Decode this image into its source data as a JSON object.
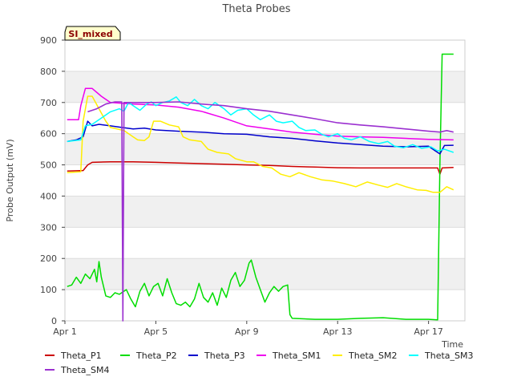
{
  "chart_data": {
    "type": "line",
    "title": "Theta Probes",
    "xlabel": "Time",
    "ylabel": "Probe Output (mV)",
    "badge": "SI_mixed",
    "ylim": [
      0,
      900
    ],
    "xlim": [
      1,
      18.6
    ],
    "yticks": [
      0,
      100,
      200,
      300,
      400,
      500,
      600,
      700,
      800,
      900
    ],
    "xticks": [
      {
        "value": 1,
        "label": "Apr 1"
      },
      {
        "value": 5,
        "label": "Apr 5"
      },
      {
        "value": 9,
        "label": "Apr 9"
      },
      {
        "value": 13,
        "label": "Apr 13"
      },
      {
        "value": 17,
        "label": "Apr 17"
      }
    ],
    "grid": true,
    "series": [
      {
        "name": "Theta_P1",
        "color": "#cc0000",
        "points": [
          [
            1.1,
            480
          ],
          [
            1.8,
            482
          ],
          [
            2.0,
            500
          ],
          [
            2.2,
            508
          ],
          [
            3,
            510
          ],
          [
            4,
            510
          ],
          [
            5,
            508
          ],
          [
            6,
            506
          ],
          [
            7,
            504
          ],
          [
            8,
            502
          ],
          [
            9,
            500
          ],
          [
            10,
            498
          ],
          [
            11,
            495
          ],
          [
            12,
            493
          ],
          [
            13,
            491
          ],
          [
            14,
            490
          ],
          [
            15,
            490
          ],
          [
            16,
            490
          ],
          [
            17,
            490
          ],
          [
            17.4,
            490
          ],
          [
            17.5,
            470
          ],
          [
            17.6,
            490
          ],
          [
            18.1,
            492
          ]
        ]
      },
      {
        "name": "Theta_P2",
        "color": "#00dd00",
        "points": [
          [
            1.1,
            110
          ],
          [
            1.3,
            115
          ],
          [
            1.5,
            140
          ],
          [
            1.7,
            120
          ],
          [
            1.9,
            150
          ],
          [
            2.1,
            135
          ],
          [
            2.3,
            165
          ],
          [
            2.4,
            125
          ],
          [
            2.5,
            190
          ],
          [
            2.6,
            140
          ],
          [
            2.8,
            80
          ],
          [
            3.0,
            75
          ],
          [
            3.2,
            90
          ],
          [
            3.4,
            85
          ],
          [
            3.7,
            100
          ],
          [
            3.9,
            70
          ],
          [
            4.1,
            45
          ],
          [
            4.3,
            95
          ],
          [
            4.5,
            120
          ],
          [
            4.7,
            80
          ],
          [
            4.9,
            110
          ],
          [
            5.1,
            120
          ],
          [
            5.3,
            80
          ],
          [
            5.5,
            135
          ],
          [
            5.7,
            90
          ],
          [
            5.9,
            55
          ],
          [
            6.1,
            50
          ],
          [
            6.3,
            60
          ],
          [
            6.5,
            45
          ],
          [
            6.7,
            70
          ],
          [
            6.9,
            120
          ],
          [
            7.1,
            75
          ],
          [
            7.3,
            60
          ],
          [
            7.5,
            90
          ],
          [
            7.7,
            50
          ],
          [
            7.9,
            105
          ],
          [
            8.1,
            75
          ],
          [
            8.3,
            130
          ],
          [
            8.5,
            155
          ],
          [
            8.7,
            110
          ],
          [
            8.9,
            130
          ],
          [
            9.1,
            185
          ],
          [
            9.2,
            195
          ],
          [
            9.4,
            140
          ],
          [
            9.6,
            100
          ],
          [
            9.8,
            60
          ],
          [
            10.0,
            90
          ],
          [
            10.2,
            110
          ],
          [
            10.4,
            95
          ],
          [
            10.6,
            110
          ],
          [
            10.8,
            115
          ],
          [
            10.9,
            20
          ],
          [
            11.0,
            8
          ],
          [
            12,
            5
          ],
          [
            13,
            5
          ],
          [
            14,
            8
          ],
          [
            15,
            10
          ],
          [
            16,
            5
          ],
          [
            17,
            5
          ],
          [
            17.4,
            3
          ],
          [
            17.5,
            500
          ],
          [
            17.6,
            855
          ],
          [
            18.1,
            855
          ]
        ]
      },
      {
        "name": "Theta_P3",
        "color": "#0000cc",
        "points": [
          [
            1.1,
            575
          ],
          [
            1.5,
            580
          ],
          [
            1.8,
            590
          ],
          [
            2.0,
            640
          ],
          [
            2.2,
            625
          ],
          [
            2.5,
            630
          ],
          [
            3,
            625
          ],
          [
            3.5,
            620
          ],
          [
            4,
            615
          ],
          [
            4.5,
            618
          ],
          [
            5,
            612
          ],
          [
            6,
            608
          ],
          [
            7,
            605
          ],
          [
            8,
            600
          ],
          [
            9,
            598
          ],
          [
            10,
            590
          ],
          [
            11,
            585
          ],
          [
            12,
            577
          ],
          [
            13,
            570
          ],
          [
            14,
            565
          ],
          [
            15,
            560
          ],
          [
            16,
            558
          ],
          [
            17,
            560
          ],
          [
            17.3,
            545
          ],
          [
            17.5,
            535
          ],
          [
            17.7,
            562
          ],
          [
            18.1,
            563
          ]
        ]
      },
      {
        "name": "Theta_SM1",
        "color": "#ee00ee",
        "points": [
          [
            1.1,
            645
          ],
          [
            1.6,
            645
          ],
          [
            1.7,
            690
          ],
          [
            1.9,
            745
          ],
          [
            2.2,
            745
          ],
          [
            2.6,
            720
          ],
          [
            3,
            700
          ],
          [
            4,
            695
          ],
          [
            5,
            692
          ],
          [
            6,
            685
          ],
          [
            7,
            672
          ],
          [
            8,
            650
          ],
          [
            9,
            625
          ],
          [
            10,
            615
          ],
          [
            11,
            605
          ],
          [
            12,
            598
          ],
          [
            13,
            592
          ],
          [
            14,
            590
          ],
          [
            15,
            588
          ],
          [
            16,
            585
          ],
          [
            17,
            582
          ],
          [
            18.1,
            580
          ]
        ]
      },
      {
        "name": "Theta_SM2",
        "color": "#ffee00",
        "points": [
          [
            1.1,
            475
          ],
          [
            1.7,
            478
          ],
          [
            1.8,
            640
          ],
          [
            2.0,
            720
          ],
          [
            2.2,
            720
          ],
          [
            2.5,
            680
          ],
          [
            2.8,
            640
          ],
          [
            3.0,
            620
          ],
          [
            3.3,
            615
          ],
          [
            3.6,
            610
          ],
          [
            4,
            590
          ],
          [
            4.2,
            580
          ],
          [
            4.5,
            578
          ],
          [
            4.7,
            590
          ],
          [
            4.9,
            640
          ],
          [
            5.2,
            640
          ],
          [
            5.6,
            628
          ],
          [
            6.0,
            622
          ],
          [
            6.2,
            590
          ],
          [
            6.5,
            580
          ],
          [
            7,
            575
          ],
          [
            7.3,
            550
          ],
          [
            7.7,
            540
          ],
          [
            8.2,
            535
          ],
          [
            8.5,
            520
          ],
          [
            9,
            510
          ],
          [
            9.3,
            510
          ],
          [
            9.7,
            495
          ],
          [
            10.1,
            490
          ],
          [
            10.5,
            470
          ],
          [
            10.9,
            462
          ],
          [
            11.3,
            475
          ],
          [
            11.8,
            462
          ],
          [
            12.3,
            452
          ],
          [
            12.8,
            448
          ],
          [
            13.3,
            440
          ],
          [
            13.8,
            430
          ],
          [
            14.3,
            445
          ],
          [
            14.8,
            435
          ],
          [
            15.2,
            428
          ],
          [
            15.6,
            440
          ],
          [
            16.0,
            430
          ],
          [
            16.5,
            420
          ],
          [
            16.9,
            418
          ],
          [
            17.2,
            412
          ],
          [
            17.5,
            412
          ],
          [
            17.8,
            430
          ],
          [
            18.1,
            420
          ]
        ]
      },
      {
        "name": "Theta_SM3",
        "color": "#00ffff",
        "points": [
          [
            1.1,
            575
          ],
          [
            1.7,
            580
          ],
          [
            1.9,
            625
          ],
          [
            2.2,
            630
          ],
          [
            2.6,
            650
          ],
          [
            3.0,
            670
          ],
          [
            3.4,
            680
          ],
          [
            3.6,
            672
          ],
          [
            3.8,
            700
          ],
          [
            4.0,
            690
          ],
          [
            4.3,
            675
          ],
          [
            4.6,
            695
          ],
          [
            4.8,
            702
          ],
          [
            5.0,
            690
          ],
          [
            5.3,
            700
          ],
          [
            5.6,
            705
          ],
          [
            5.9,
            718
          ],
          [
            6.1,
            700
          ],
          [
            6.4,
            690
          ],
          [
            6.7,
            710
          ],
          [
            7.0,
            690
          ],
          [
            7.3,
            680
          ],
          [
            7.6,
            700
          ],
          [
            8.0,
            680
          ],
          [
            8.3,
            660
          ],
          [
            8.6,
            675
          ],
          [
            9.0,
            680
          ],
          [
            9.3,
            660
          ],
          [
            9.6,
            645
          ],
          [
            10.0,
            660
          ],
          [
            10.3,
            640
          ],
          [
            10.6,
            635
          ],
          [
            11.0,
            640
          ],
          [
            11.3,
            620
          ],
          [
            11.6,
            610
          ],
          [
            12.0,
            612
          ],
          [
            12.3,
            598
          ],
          [
            12.6,
            590
          ],
          [
            13.0,
            600
          ],
          [
            13.3,
            585
          ],
          [
            13.6,
            580
          ],
          [
            14.0,
            590
          ],
          [
            14.4,
            575
          ],
          [
            14.8,
            568
          ],
          [
            15.2,
            575
          ],
          [
            15.5,
            560
          ],
          [
            15.9,
            555
          ],
          [
            16.3,
            565
          ],
          [
            16.7,
            553
          ],
          [
            17.1,
            558
          ],
          [
            17.4,
            545
          ],
          [
            17.7,
            550
          ],
          [
            18.1,
            540
          ]
        ]
      },
      {
        "name": "Theta_SM4",
        "color": "#9b30d0",
        "points": [
          [
            2.0,
            670
          ],
          [
            2.4,
            680
          ],
          [
            2.8,
            695
          ],
          [
            3.2,
            702
          ],
          [
            3.5,
            702
          ],
          [
            3.55,
            0
          ],
          [
            3.6,
            700
          ],
          [
            4,
            700
          ],
          [
            5,
            700
          ],
          [
            6,
            702
          ],
          [
            7,
            695
          ],
          [
            8,
            690
          ],
          [
            9,
            680
          ],
          [
            10,
            672
          ],
          [
            11,
            660
          ],
          [
            12,
            648
          ],
          [
            13,
            635
          ],
          [
            14,
            628
          ],
          [
            15,
            622
          ],
          [
            16,
            615
          ],
          [
            17,
            608
          ],
          [
            17.5,
            605
          ],
          [
            17.8,
            610
          ],
          [
            18.1,
            605
          ]
        ]
      }
    ]
  }
}
